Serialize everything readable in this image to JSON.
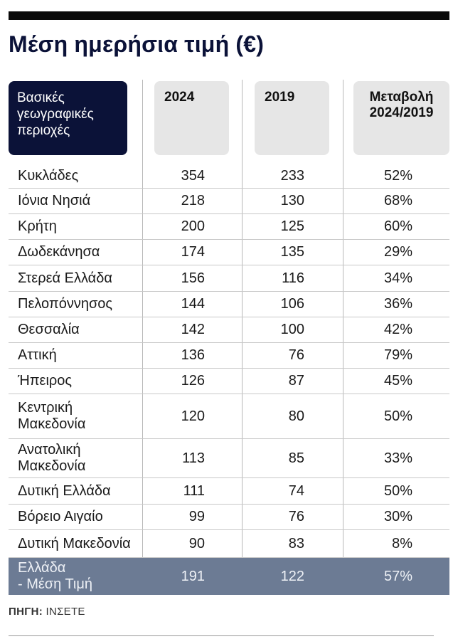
{
  "title": "Μέση ημερήσια τιμή (€)",
  "chart_data": {
    "type": "table",
    "title": "Μέση ημερήσια τιμή (€)",
    "columns": [
      "Βασικές γεωγραφικές περιοχές",
      "2024",
      "2019",
      "Μεταβολή 2024/2019"
    ],
    "header": {
      "label_lines": [
        "Βασικές",
        "γεωγραφικές",
        "περιοχές"
      ],
      "col_2024": "2024",
      "col_2019": "2019",
      "col_change_lines": [
        "Μεταβολή",
        "2024/2019"
      ]
    },
    "rows": [
      {
        "region": "Κυκλάδες",
        "v2024": "354",
        "v2019": "233",
        "change": "52%"
      },
      {
        "region": "Ιόνια Νησιά",
        "v2024": "218",
        "v2019": "130",
        "change": "68%"
      },
      {
        "region": "Κρήτη",
        "v2024": "200",
        "v2019": "125",
        "change": "60%"
      },
      {
        "region": "Δωδεκάνησα",
        "v2024": "174",
        "v2019": "135",
        "change": "29%"
      },
      {
        "region": "Στερεά Ελλάδα",
        "v2024": "156",
        "v2019": "116",
        "change": "34%"
      },
      {
        "region": "Πελοπόννησος",
        "v2024": "144",
        "v2019": "106",
        "change": "36%"
      },
      {
        "region": "Θεσσαλία",
        "v2024": "142",
        "v2019": "100",
        "change": "42%"
      },
      {
        "region": "Αττική",
        "v2024": "136",
        "v2019": "76",
        "change": "79%"
      },
      {
        "region": "Ήπειρος",
        "v2024": "126",
        "v2019": "87",
        "change": "45%"
      },
      {
        "region": "Κεντρική Μακεδονία",
        "region_lines": [
          "Κεντρική",
          "Μακεδονία"
        ],
        "v2024": "120",
        "v2019": "80",
        "change": "50%"
      },
      {
        "region": "Ανατολική Μακεδονία",
        "region_lines": [
          "Ανατολική",
          "Μακεδονία"
        ],
        "v2024": "113",
        "v2019": "85",
        "change": "33%"
      },
      {
        "region": "Δυτική Ελλάδα",
        "v2024": "111",
        "v2019": "74",
        "change": "50%"
      },
      {
        "region": "Βόρειο Αιγαίο",
        "v2024": "99",
        "v2019": "76",
        "change": "30%"
      },
      {
        "region": "Δυτική Μακεδονία",
        "v2024": "90",
        "v2019": "83",
        "change": "8%"
      }
    ],
    "total": {
      "region_lines": [
        "Ελλάδα",
        "- Μέση Τιμή"
      ],
      "v2024": "191",
      "v2019": "122",
      "change": "57%"
    }
  },
  "source": {
    "label": "ΠΗΓΗ:",
    "value": "ΙΝΣΕΤΕ"
  }
}
